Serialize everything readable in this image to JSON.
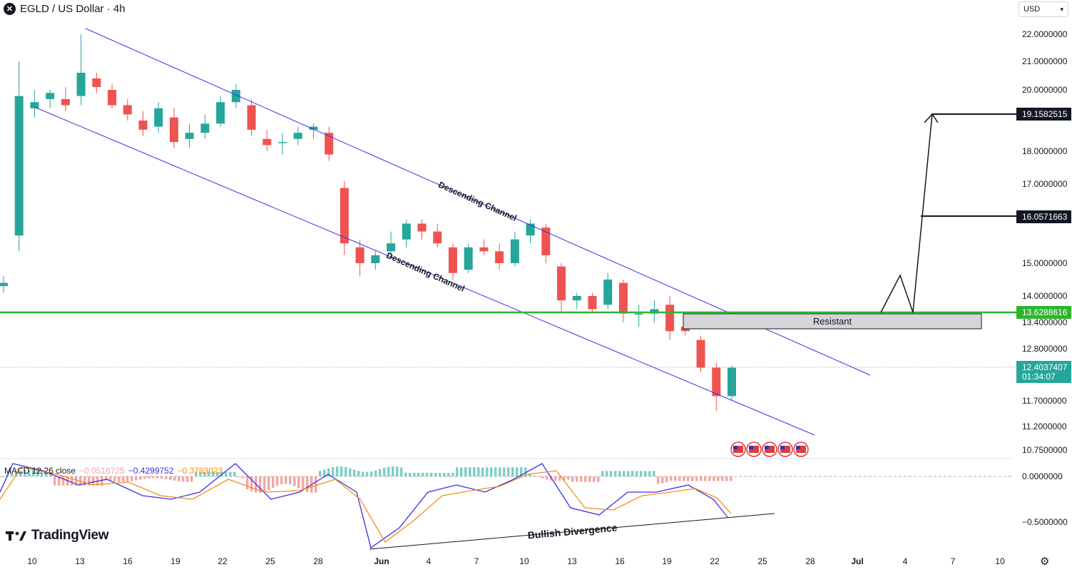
{
  "header": {
    "symbol": "EGLD / US Dollar · 4h",
    "logo_glyph": "✕"
  },
  "currency_selector": {
    "label": "USD",
    "icon": "chevron-down-icon"
  },
  "branding": {
    "name": "TradingView",
    "icon": "tradingview-logo-icon"
  },
  "settings": {
    "icon": "gear-icon"
  },
  "colors": {
    "up": "#26a69a",
    "down": "#ef5350",
    "channel": "#3f2fe0",
    "support": "#2db52d",
    "macd": "#3f2fe0",
    "signal": "#f0901e",
    "hist_up": "#26a69a",
    "hist_down": "#ef5350"
  },
  "chart_data": {
    "type": "candlestick",
    "title": "EGLD / US Dollar · 4h",
    "y_axis": {
      "ticks": [
        "22.0000000",
        "21.0000000",
        "20.0000000",
        "18.0000000",
        "17.0000000",
        "15.0000000",
        "14.0000000",
        "13.4000000",
        "12.8000000",
        "11.7000000",
        "11.2000000",
        "10.7500000"
      ]
    },
    "x_axis": {
      "ticks": [
        "10",
        "13",
        "16",
        "19",
        "22",
        "25",
        "28",
        "Jun",
        "4",
        "7",
        "10",
        "13",
        "16",
        "19",
        "22",
        "25",
        "28",
        "Jul",
        "4",
        "7",
        "10"
      ]
    },
    "price_series": [
      {
        "d": "May 8",
        "o": 14.3,
        "h": 14.6,
        "l": 14.1,
        "c": 14.4
      },
      {
        "d": "May 9",
        "o": 15.7,
        "h": 21.0,
        "l": 15.3,
        "c": 19.8
      },
      {
        "d": "May 10",
        "o": 19.4,
        "h": 20.0,
        "l": 19.1,
        "c": 19.6
      },
      {
        "d": "May 11",
        "o": 19.7,
        "h": 20.0,
        "l": 19.4,
        "c": 19.9
      },
      {
        "d": "May 12",
        "o": 19.7,
        "h": 20.1,
        "l": 19.3,
        "c": 19.5
      },
      {
        "d": "May 13",
        "o": 19.8,
        "h": 22.0,
        "l": 19.5,
        "c": 20.6
      },
      {
        "d": "May 14",
        "o": 20.4,
        "h": 20.6,
        "l": 19.9,
        "c": 20.1
      },
      {
        "d": "May 15",
        "o": 20.0,
        "h": 20.2,
        "l": 19.4,
        "c": 19.5
      },
      {
        "d": "May 16",
        "o": 19.5,
        "h": 19.7,
        "l": 19.0,
        "c": 19.2
      },
      {
        "d": "May 17",
        "o": 19.0,
        "h": 19.3,
        "l": 18.5,
        "c": 18.7
      },
      {
        "d": "May 18",
        "o": 18.8,
        "h": 19.6,
        "l": 18.6,
        "c": 19.4
      },
      {
        "d": "May 19",
        "o": 19.1,
        "h": 19.4,
        "l": 18.1,
        "c": 18.3
      },
      {
        "d": "May 20",
        "o": 18.4,
        "h": 18.9,
        "l": 18.1,
        "c": 18.6
      },
      {
        "d": "May 21",
        "o": 18.6,
        "h": 19.2,
        "l": 18.4,
        "c": 18.9
      },
      {
        "d": "May 22",
        "o": 18.9,
        "h": 19.8,
        "l": 18.8,
        "c": 19.6
      },
      {
        "d": "May 23",
        "o": 19.6,
        "h": 20.2,
        "l": 19.4,
        "c": 20.0
      },
      {
        "d": "May 24",
        "o": 19.5,
        "h": 19.7,
        "l": 18.5,
        "c": 18.7
      },
      {
        "d": "May 25",
        "o": 18.4,
        "h": 18.7,
        "l": 18.0,
        "c": 18.2
      },
      {
        "d": "May 26",
        "o": 18.3,
        "h": 18.6,
        "l": 17.9,
        "c": 18.3
      },
      {
        "d": "May 27",
        "o": 18.4,
        "h": 18.8,
        "l": 18.2,
        "c": 18.6
      },
      {
        "d": "May 28",
        "o": 18.7,
        "h": 18.9,
        "l": 18.4,
        "c": 18.8
      },
      {
        "d": "May 29",
        "o": 18.6,
        "h": 18.8,
        "l": 17.7,
        "c": 17.9
      },
      {
        "d": "May 30",
        "o": 16.9,
        "h": 17.1,
        "l": 15.2,
        "c": 15.5
      },
      {
        "d": "May 31",
        "o": 15.4,
        "h": 15.6,
        "l": 14.6,
        "c": 15.0
      },
      {
        "d": "Jun 1",
        "o": 15.0,
        "h": 15.3,
        "l": 14.8,
        "c": 15.2
      },
      {
        "d": "Jun 2",
        "o": 15.3,
        "h": 15.8,
        "l": 15.1,
        "c": 15.5
      },
      {
        "d": "Jun 3",
        "o": 15.6,
        "h": 16.1,
        "l": 15.4,
        "c": 16.0
      },
      {
        "d": "Jun 4",
        "o": 16.0,
        "h": 16.1,
        "l": 15.6,
        "c": 15.8
      },
      {
        "d": "Jun 5",
        "o": 15.8,
        "h": 16.0,
        "l": 15.4,
        "c": 15.5
      },
      {
        "d": "Jun 6",
        "o": 15.4,
        "h": 15.5,
        "l": 14.5,
        "c": 14.7
      },
      {
        "d": "Jun 7",
        "o": 14.8,
        "h": 15.5,
        "l": 14.7,
        "c": 15.4
      },
      {
        "d": "Jun 8",
        "o": 15.4,
        "h": 15.6,
        "l": 15.2,
        "c": 15.3
      },
      {
        "d": "Jun 9",
        "o": 15.3,
        "h": 15.5,
        "l": 14.8,
        "c": 15.0
      },
      {
        "d": "Jun 10",
        "o": 15.0,
        "h": 15.8,
        "l": 14.9,
        "c": 15.6
      },
      {
        "d": "Jun 11",
        "o": 15.7,
        "h": 16.1,
        "l": 15.5,
        "c": 16.0
      },
      {
        "d": "Jun 12",
        "o": 15.9,
        "h": 16.0,
        "l": 15.0,
        "c": 15.2
      },
      {
        "d": "Jun 13",
        "o": 14.9,
        "h": 15.0,
        "l": 13.6,
        "c": 13.9
      },
      {
        "d": "Jun 14",
        "o": 13.9,
        "h": 14.1,
        "l": 13.7,
        "c": 14.0
      },
      {
        "d": "Jun 15",
        "o": 14.0,
        "h": 14.1,
        "l": 13.6,
        "c": 13.7
      },
      {
        "d": "Jun 16",
        "o": 13.8,
        "h": 14.7,
        "l": 13.7,
        "c": 14.5
      },
      {
        "d": "Jun 17",
        "o": 14.4,
        "h": 14.5,
        "l": 13.4,
        "c": 13.6
      },
      {
        "d": "Jun 18",
        "o": 13.6,
        "h": 13.8,
        "l": 13.3,
        "c": 13.6
      },
      {
        "d": "Jun 19",
        "o": 13.6,
        "h": 13.9,
        "l": 13.4,
        "c": 13.7
      },
      {
        "d": "Jun 20",
        "o": 13.8,
        "h": 14.0,
        "l": 13.0,
        "c": 13.2
      },
      {
        "d": "Jun 21",
        "o": 13.3,
        "h": 13.6,
        "l": 13.1,
        "c": 13.2
      },
      {
        "d": "Jun 22",
        "o": 13.0,
        "h": 13.1,
        "l": 12.3,
        "c": 12.4
      },
      {
        "d": "Jun 23",
        "o": 12.4,
        "h": 12.5,
        "l": 11.5,
        "c": 11.8
      },
      {
        "d": "Jun 23b",
        "o": 11.8,
        "h": 12.45,
        "l": 11.7,
        "c": 12.4
      }
    ],
    "annotations": {
      "channel_label_upper": "Descending Channel",
      "channel_label_lower": "Descending Channel",
      "resistance_label": "Resistant",
      "divergence_label": "Bullish Divergence"
    },
    "price_labels": {
      "target_high": "19.1582515",
      "target_mid": "16.0571663",
      "support_level": "13.6288616",
      "last_price": "12.4037407",
      "countdown": "01:34:07"
    },
    "macd": {
      "legend_title": "MACD 12 26 close",
      "hist_value": "−0.0516725",
      "macd_value": "−0.4299752",
      "signal_value": "−0.3783023",
      "axis_ticks": [
        "0.0000000",
        "−0.5000000"
      ]
    },
    "event_icons": [
      "us-flag-icon",
      "us-flag-icon",
      "us-flag-icon",
      "us-flag-icon",
      "us-flag-icon"
    ],
    "grid": false,
    "legend": "top-left"
  }
}
